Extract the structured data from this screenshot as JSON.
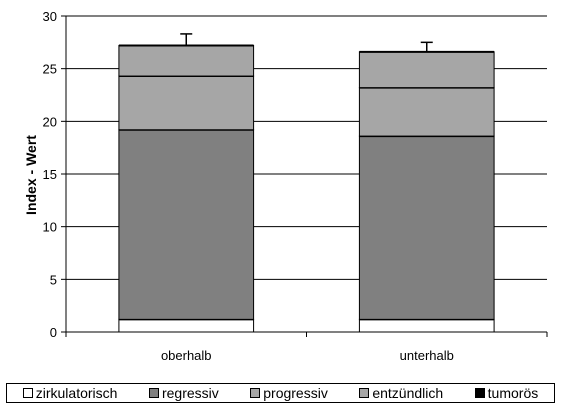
{
  "chart_data": {
    "type": "bar",
    "stacked": true,
    "categories": [
      "oberhalb",
      "unterhalb"
    ],
    "series": [
      {
        "name": "zirkulatorisch",
        "color": "#ffffff",
        "values": [
          1.2,
          1.2
        ]
      },
      {
        "name": "regressiv",
        "color": "#808080",
        "values": [
          18.0,
          17.4
        ]
      },
      {
        "name": "progressiv",
        "color": "#a6a6a6",
        "values": [
          5.1,
          4.6
        ]
      },
      {
        "name": "entzündlich",
        "color": "#a6a6a6",
        "values": [
          2.9,
          3.4
        ]
      },
      {
        "name": "tumorös",
        "color": "#000000",
        "values": [
          0.0,
          0.0
        ]
      }
    ],
    "error_bars": [
      1.1,
      0.9
    ],
    "ylabel": "Index - Wert",
    "xlabel": "",
    "ylim": [
      0,
      30
    ],
    "yticks": [
      0,
      5,
      10,
      15,
      20,
      25,
      30
    ],
    "grid": true,
    "legend": "bottom"
  }
}
